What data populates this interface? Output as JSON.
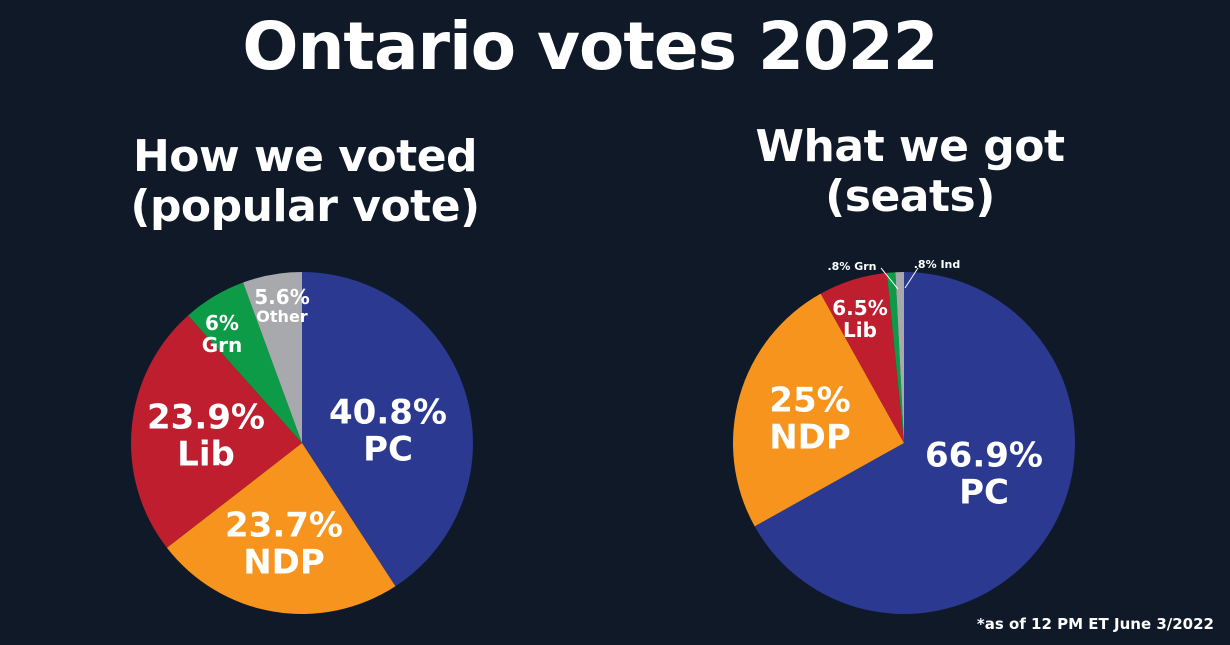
{
  "title": "Ontario votes 2022",
  "footnote": "*as of 12 PM ET June 3/2022",
  "colors": {
    "PC": "#2b3990",
    "NDP": "#f7941d",
    "Lib": "#be1e2d",
    "Grn": "#0d9b48",
    "Other": "#a7a9ac",
    "Ind": "#a7a9ac",
    "background": "#0f1928"
  },
  "chart_data": [
    {
      "type": "pie",
      "title": "How we voted (popular vote)",
      "title_lines": [
        "How we voted",
        "(popular vote)"
      ],
      "start": "top, clockwise",
      "slices": [
        {
          "name": "PC",
          "value": 40.8,
          "label": "40.8%"
        },
        {
          "name": "NDP",
          "value": 23.7,
          "label": "23.7%"
        },
        {
          "name": "Lib",
          "value": 23.9,
          "label": "23.9%"
        },
        {
          "name": "Grn",
          "value": 6,
          "label": "6%"
        },
        {
          "name": "Other",
          "value": 5.6,
          "label": "5.6%"
        }
      ]
    },
    {
      "type": "pie",
      "title": "What we got (seats)",
      "title_lines": [
        "What we got",
        "(seats)"
      ],
      "start": "top, clockwise",
      "slices": [
        {
          "name": "PC",
          "value": 66.9,
          "label": "66.9%"
        },
        {
          "name": "NDP",
          "value": 25,
          "label": "25%"
        },
        {
          "name": "Lib",
          "value": 6.5,
          "label": "6.5%"
        },
        {
          "name": "Grn",
          "value": 0.8,
          "label": ".8%"
        },
        {
          "name": "Ind",
          "value": 0.8,
          "label": ".8%"
        }
      ]
    }
  ]
}
